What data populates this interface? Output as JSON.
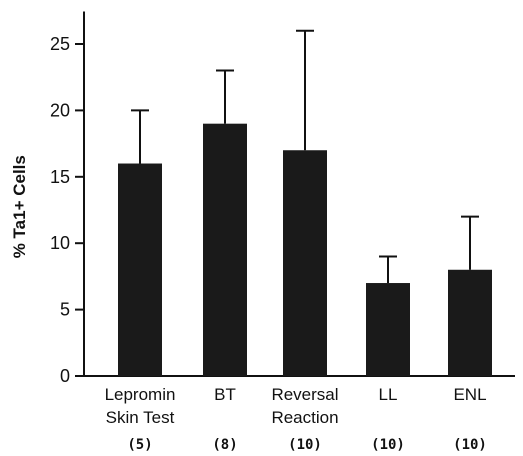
{
  "chart_data": {
    "type": "bar",
    "ylabel": "% Ta1+ Cells",
    "ylim": [
      0,
      27
    ],
    "yticks": [
      0,
      5,
      10,
      15,
      20,
      25
    ],
    "categories": [
      {
        "label_lines": [
          "Lepromin",
          "Skin Test"
        ],
        "n": "(5)"
      },
      {
        "label_lines": [
          "BT"
        ],
        "n": "(8)"
      },
      {
        "label_lines": [
          "Reversal",
          "Reaction"
        ],
        "n": "(10)"
      },
      {
        "label_lines": [
          "LL"
        ],
        "n": "(10)"
      },
      {
        "label_lines": [
          "ENL"
        ],
        "n": "(10)"
      }
    ],
    "values": [
      16,
      19,
      17,
      7,
      8
    ],
    "error_upper": [
      20,
      23,
      26,
      9,
      12
    ],
    "grid": false,
    "legend": "none",
    "bar_color": "#1a1a1a"
  }
}
